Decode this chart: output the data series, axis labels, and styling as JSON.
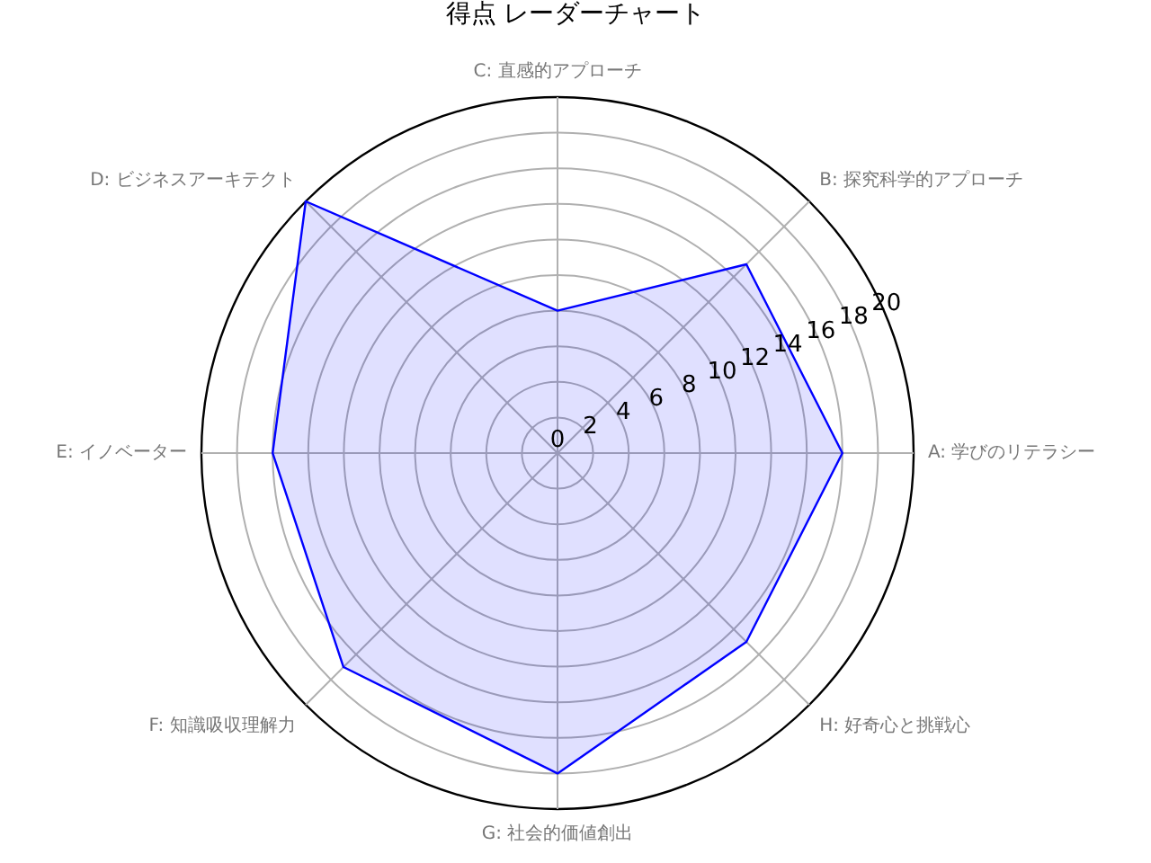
{
  "chart_data": {
    "type": "radar",
    "title": "得点 レーダーチャート",
    "categories": [
      "C: 直感的アプローチ",
      "B: 探究科学的アプローチ",
      "A: 学びのリテラシー",
      "H: 好奇心と挑戦心",
      "G: 社会的価値創出",
      "F: 知識吸収理解力",
      "E: イノベーター",
      "D: ビジネスアーキテクト"
    ],
    "series": [
      {
        "color": "#0000ff",
        "values": [
          8,
          15,
          16,
          15,
          18,
          17,
          16,
          20
        ]
      }
    ],
    "ylim": [
      0,
      20
    ],
    "yticks": [
      0,
      2,
      4,
      6,
      8,
      10,
      12,
      14,
      16,
      18,
      20
    ],
    "grid": true,
    "marker": "none",
    "legend": false
  }
}
